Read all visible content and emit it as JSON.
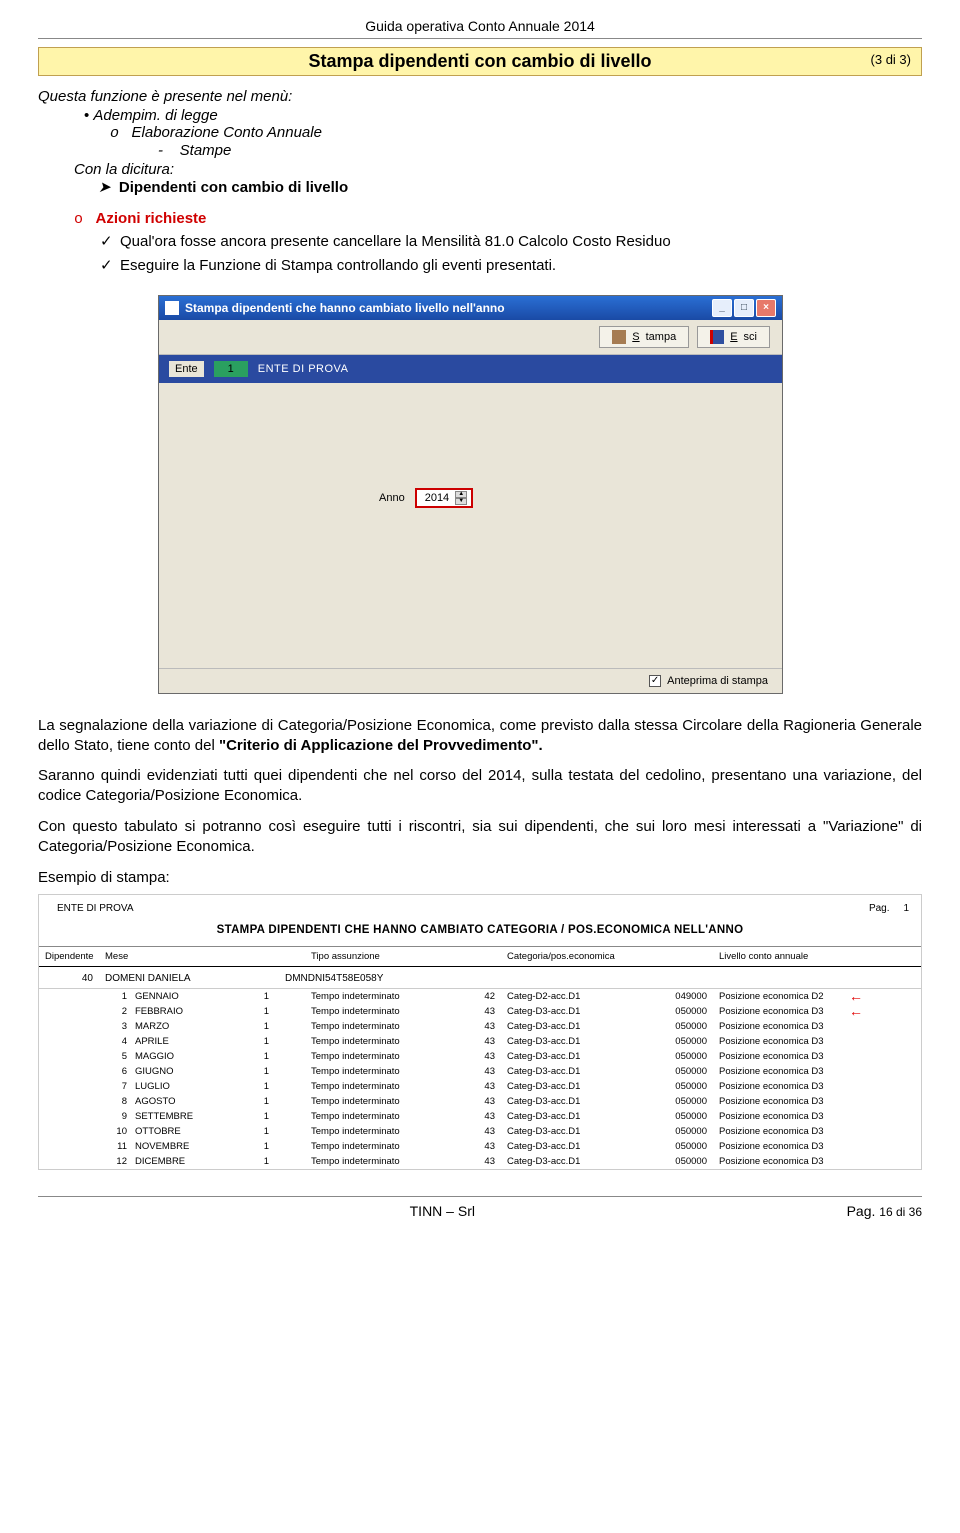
{
  "doc_header": "Guida operativa  Conto Annuale 2014",
  "title": "Stampa dipendenti con cambio di livello",
  "page_count": "(3 di 3)",
  "intro": "Questa funzione è presente nel menù:",
  "menu1": "Adempim. di legge",
  "menu2_o": "o",
  "menu2": "Elaborazione Conto Annuale",
  "menu3_dash": "-",
  "menu3": "Stampe",
  "dicitura_lbl": "Con la dicitura:",
  "dicitura_arrow": "➤",
  "dicitura_txt": "Dipendenti con cambio di livello",
  "azioni_o": "o",
  "azioni": "Azioni richieste",
  "check_mark": "✓",
  "az1": "Qual'ora fosse ancora presente cancellare la Mensilità 81.0 Calcolo Costo Residuo",
  "az2": "Eseguire la Funzione di Stampa controllando gli eventi presentati.",
  "window": {
    "title": "Stampa dipendenti che hanno cambiato livello nell'anno",
    "btn_print": "Stampa",
    "btn_exit": "Esci",
    "ente_lbl": "Ente",
    "ente_code": "1",
    "ente_name": "ENTE DI PROVA",
    "anno_lbl": "Anno",
    "anno_val": "2014",
    "preview_lbl": "Anteprima di stampa",
    "preview_checked": "✓"
  },
  "para1_a": "La segnalazione della variazione di Categoria/Posizione Economica, come previsto dalla stessa Circolare della Ragioneria Generale dello Stato, tiene conto del ",
  "para1_b": "\"Criterio di Applicazione del Provvedimento\".",
  "para2": "Saranno quindi evidenziati tutti quei dipendenti che nel corso del 2014, sulla testata del cedolino, presentano una variazione, del codice Categoria/Posizione Economica.",
  "para3": "Con questo tabulato si potranno così eseguire tutti i riscontri, sia sui dipendenti,  che sui loro mesi interessati a \"Variazione\" di Categoria/Posizione Economica.",
  "esempio": "Esempio di stampa:",
  "report": {
    "ente": "ENTE DI PROVA",
    "pag_lbl": "Pag.",
    "pag_num": "1",
    "title": "STAMPA DIPENDENTI CHE HANNO CAMBIATO CATEGORIA / POS.ECONOMICA  NELL'ANNO",
    "hdrs": [
      "Dipendente",
      "Mese",
      "",
      "",
      "Tipo assunzione",
      "",
      "Categoria/pos.economica",
      "",
      "Livello conto annuale",
      ""
    ],
    "person_id": "40",
    "person_name": "DOMENI DANIELA",
    "person_code": "DMNDNI54T58E058Y",
    "rows": [
      {
        "n": "1",
        "mese": "GENNAIO",
        "ta": "1",
        "tat": "Tempo indeterminato",
        "cat": "42",
        "catt": "Categ-D2-acc.D1",
        "liv": "049000",
        "livt": "Posizione economica D2",
        "arrow": true
      },
      {
        "n": "2",
        "mese": "FEBBRAIO",
        "ta": "1",
        "tat": "Tempo indeterminato",
        "cat": "43",
        "catt": "Categ-D3-acc.D1",
        "liv": "050000",
        "livt": "Posizione economica D3",
        "arrow": true
      },
      {
        "n": "3",
        "mese": "MARZO",
        "ta": "1",
        "tat": "Tempo indeterminato",
        "cat": "43",
        "catt": "Categ-D3-acc.D1",
        "liv": "050000",
        "livt": "Posizione economica D3",
        "arrow": false
      },
      {
        "n": "4",
        "mese": "APRILE",
        "ta": "1",
        "tat": "Tempo indeterminato",
        "cat": "43",
        "catt": "Categ-D3-acc.D1",
        "liv": "050000",
        "livt": "Posizione economica D3",
        "arrow": false
      },
      {
        "n": "5",
        "mese": "MAGGIO",
        "ta": "1",
        "tat": "Tempo indeterminato",
        "cat": "43",
        "catt": "Categ-D3-acc.D1",
        "liv": "050000",
        "livt": "Posizione economica D3",
        "arrow": false
      },
      {
        "n": "6",
        "mese": "GIUGNO",
        "ta": "1",
        "tat": "Tempo indeterminato",
        "cat": "43",
        "catt": "Categ-D3-acc.D1",
        "liv": "050000",
        "livt": "Posizione economica D3",
        "arrow": false
      },
      {
        "n": "7",
        "mese": "LUGLIO",
        "ta": "1",
        "tat": "Tempo indeterminato",
        "cat": "43",
        "catt": "Categ-D3-acc.D1",
        "liv": "050000",
        "livt": "Posizione economica D3",
        "arrow": false
      },
      {
        "n": "8",
        "mese": "AGOSTO",
        "ta": "1",
        "tat": "Tempo indeterminato",
        "cat": "43",
        "catt": "Categ-D3-acc.D1",
        "liv": "050000",
        "livt": "Posizione economica D3",
        "arrow": false
      },
      {
        "n": "9",
        "mese": "SETTEMBRE",
        "ta": "1",
        "tat": "Tempo indeterminato",
        "cat": "43",
        "catt": "Categ-D3-acc.D1",
        "liv": "050000",
        "livt": "Posizione economica D3",
        "arrow": false
      },
      {
        "n": "10",
        "mese": "OTTOBRE",
        "ta": "1",
        "tat": "Tempo indeterminato",
        "cat": "43",
        "catt": "Categ-D3-acc.D1",
        "liv": "050000",
        "livt": "Posizione economica D3",
        "arrow": false
      },
      {
        "n": "11",
        "mese": "NOVEMBRE",
        "ta": "1",
        "tat": "Tempo indeterminato",
        "cat": "43",
        "catt": "Categ-D3-acc.D1",
        "liv": "050000",
        "livt": "Posizione economica D3",
        "arrow": false
      },
      {
        "n": "12",
        "mese": "DICEMBRE",
        "ta": "1",
        "tat": "Tempo indeterminato",
        "cat": "43",
        "catt": "Categ-D3-acc.D1",
        "liv": "050000",
        "livt": "Posizione economica D3",
        "arrow": false
      }
    ]
  },
  "footer_center": "TINN – Srl",
  "footer_right_lbl": "Pag. ",
  "footer_right_num": "16 di 36"
}
